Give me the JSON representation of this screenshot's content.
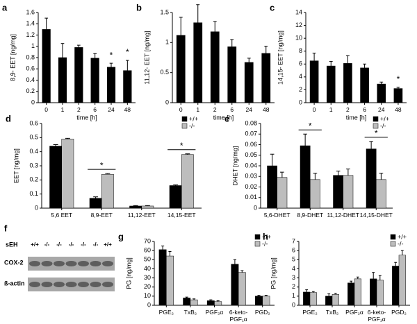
{
  "chart_data": [
    {
      "type": "bar",
      "label": "a",
      "ylabel": "8,9- EET [ng/mg]",
      "xlabel": "time [h]",
      "categories": [
        "0",
        "1",
        "2",
        "6",
        "24",
        "48"
      ],
      "color": "#000000",
      "values": [
        1.3,
        0.8,
        0.98,
        0.79,
        0.63,
        0.57
      ],
      "errors": [
        0.2,
        0.25,
        0.04,
        0.08,
        0.07,
        0.18
      ],
      "ylim": [
        0,
        1.6
      ],
      "yticks": [
        0,
        0.2,
        0.4,
        0.6,
        0.8,
        1,
        1.2,
        1.4,
        1.6
      ],
      "annotations": [
        {
          "text": "*",
          "category": "24"
        },
        {
          "text": "*",
          "category": "48"
        }
      ]
    },
    {
      "type": "bar",
      "label": "b",
      "ylabel": "11,12- EET [ng/mg]",
      "xlabel": "time [h]",
      "categories": [
        "0",
        "1",
        "2",
        "6",
        "24",
        "48"
      ],
      "color": "#000000",
      "values": [
        1.12,
        1.33,
        1.18,
        0.93,
        0.67,
        0.82
      ],
      "errors": [
        0.3,
        0.3,
        0.17,
        0.12,
        0.07,
        0.12
      ],
      "ylim": [
        0,
        1.5
      ],
      "yticks": [
        0,
        0.5,
        1,
        1.5
      ]
    },
    {
      "type": "bar",
      "label": "c",
      "ylabel": "14,15- EET [ng/mg]",
      "xlabel": "time [h]",
      "categories": [
        "0",
        "1",
        "2",
        "6",
        "24",
        "48"
      ],
      "color": "#000000",
      "values": [
        6.5,
        5.7,
        6.1,
        5.4,
        2.9,
        2.2
      ],
      "errors": [
        1.2,
        0.7,
        1.2,
        0.6,
        0.3,
        0.2
      ],
      "ylim": [
        0,
        14
      ],
      "yticks": [
        0,
        2,
        4,
        6,
        8,
        10,
        12,
        14
      ],
      "annotations": [
        {
          "text": "*",
          "category": "48"
        }
      ]
    },
    {
      "type": "grouped_bar",
      "label": "d",
      "ylabel": "EET [ng/mg]",
      "legend": "upper right",
      "categories": [
        "5,6 EET",
        "8,9-EET",
        "11,12-EET",
        "14,15-EET"
      ],
      "series": [
        {
          "name": "+/+",
          "color": "#000000",
          "values": [
            0.44,
            0.07,
            0.015,
            0.16
          ],
          "errors": [
            0.01,
            0.01,
            0.003,
            0.005
          ]
        },
        {
          "name": "-/-",
          "color": "#bdbdbd",
          "values": [
            0.49,
            0.24,
            0.015,
            0.38
          ],
          "errors": [
            0.005,
            0.005,
            0.003,
            0.005
          ]
        }
      ],
      "ylim": [
        0,
        0.6
      ],
      "yticks": [
        0,
        0.1,
        0.2,
        0.3,
        0.4,
        0.5,
        0.6
      ],
      "annotations": [
        {
          "text": "*",
          "category": "8,9-EET"
        },
        {
          "text": "*",
          "category": "14,15-EET"
        }
      ]
    },
    {
      "type": "grouped_bar",
      "label": "e",
      "ylabel": "DHET [ng/mg]",
      "legend": "upper right",
      "categories": [
        "5,6-DHET",
        "8,9-DHET",
        "11,12-DHET",
        "14,15-DHET"
      ],
      "series": [
        {
          "name": "+/+",
          "color": "#000000",
          "values": [
            0.04,
            0.059,
            0.031,
            0.056
          ],
          "errors": [
            0.011,
            0.011,
            0.004,
            0.007
          ]
        },
        {
          "name": "-/-",
          "color": "#bdbdbd",
          "values": [
            0.029,
            0.027,
            0.031,
            0.027
          ],
          "errors": [
            0.005,
            0.006,
            0.006,
            0.006
          ]
        }
      ],
      "ylim": [
        0,
        0.08
      ],
      "yticks": [
        0,
        0.01,
        0.02,
        0.03,
        0.04,
        0.05,
        0.06,
        0.07,
        0.08
      ],
      "annotations": [
        {
          "text": "*",
          "category": "8,9-DHET"
        },
        {
          "text": "*",
          "category": "14,15-DHET"
        }
      ]
    },
    {
      "type": "grouped_bar",
      "label": "g",
      "ylabel": "PG [ng/mg]",
      "legend": "upper right",
      "categories": [
        "PGE₂",
        "TxB₂",
        "PGF₂α",
        "6-keto-PGF₁α",
        "PGD₂"
      ],
      "series": [
        {
          "name": "+/+",
          "color": "#000000",
          "values": [
            61,
            8,
            5,
            45,
            10
          ],
          "errors": [
            4,
            1,
            1,
            5,
            1
          ]
        },
        {
          "name": "-/-",
          "color": "#bdbdbd",
          "values": [
            54,
            6,
            4,
            36,
            10
          ],
          "errors": [
            5,
            1,
            1,
            2,
            1
          ]
        }
      ],
      "ylim": [
        0,
        70
      ],
      "yticks": [
        0,
        10,
        20,
        30,
        40,
        50,
        60,
        70
      ]
    },
    {
      "type": "grouped_bar",
      "label": "h",
      "ylabel": "PG [ng/mg]",
      "legend": "upper right",
      "categories": [
        "PGE₂",
        "TxB₂",
        "PGF₂α",
        "6-keto-PGF₁α",
        "PGD₂"
      ],
      "series": [
        {
          "name": "+/+",
          "color": "#000000",
          "values": [
            1.45,
            1.0,
            2.45,
            2.9,
            4.3
          ],
          "errors": [
            0.25,
            0.25,
            0.2,
            0.7,
            0.4
          ]
        },
        {
          "name": "-/-",
          "color": "#bdbdbd",
          "values": [
            1.4,
            1.2,
            2.9,
            2.75,
            5.5
          ],
          "errors": [
            0.1,
            0.1,
            0.2,
            0.5,
            0.5
          ]
        }
      ],
      "ylim": [
        0,
        7
      ],
      "yticks": [
        0,
        1,
        2,
        3,
        4,
        5,
        6,
        7
      ]
    }
  ],
  "blot": {
    "label": "f",
    "row_header": "sEH",
    "lanes": [
      "+/+",
      "-/-",
      "-/-",
      "-/-",
      "-/-",
      "-/-",
      "+/+"
    ],
    "rows": [
      "COX-2",
      "ß-actin"
    ]
  }
}
